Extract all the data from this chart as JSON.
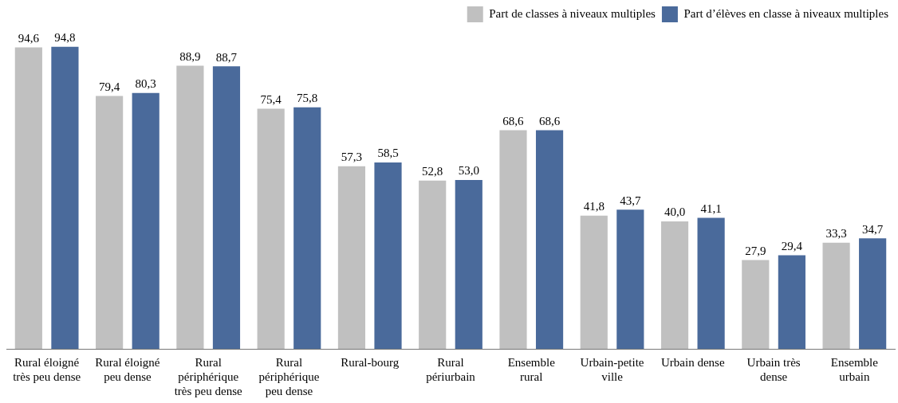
{
  "chart_data": {
    "type": "bar",
    "categories": [
      "Rural éloigné très peu dense",
      "Rural éloigné peu dense",
      "Rural périphérique très peu dense",
      "Rural périphérique peu dense",
      "Rural-bourg",
      "Rural périurbain",
      "Ensemble rural",
      "Urbain-petite ville",
      "Urbain dense",
      "Urbain très dense",
      "Ensemble urbain"
    ],
    "series": [
      {
        "name": "Part de classes à niveaux multiples",
        "color": "#c0c0c0",
        "values": [
          94.6,
          79.4,
          88.9,
          75.4,
          57.3,
          52.8,
          68.6,
          41.8,
          40.0,
          27.9,
          33.3
        ],
        "value_labels": [
          "94,6",
          "79,4",
          "88,9",
          "75,4",
          "57,3",
          "52,8",
          "68,6",
          "41,8",
          "40,0",
          "27,9",
          "33,3"
        ]
      },
      {
        "name": "Part d’élèves en classe à niveaux multiples",
        "color": "#4a6a9b",
        "values": [
          94.8,
          80.3,
          88.7,
          75.8,
          58.5,
          53.0,
          68.6,
          43.7,
          41.1,
          29.4,
          34.7
        ],
        "value_labels": [
          "94,8",
          "80,3",
          "88,7",
          "75,8",
          "58,5",
          "53,0",
          "68,6",
          "43,7",
          "41,1",
          "29,4",
          "34,7"
        ]
      }
    ],
    "legend": "top right"
  }
}
